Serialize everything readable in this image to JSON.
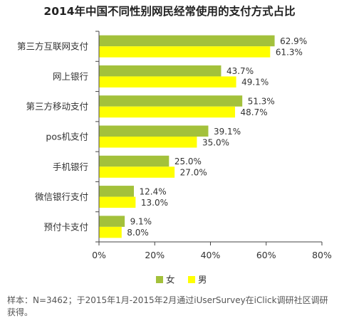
{
  "chart_data": {
    "type": "bar",
    "orientation": "horizontal",
    "title": "2014年中国不同性别网民经常使用的支付方式占比",
    "categories": [
      "第三方互联网支付",
      "网上银行",
      "第三方移动支付",
      "pos机支付",
      "手机银行",
      "微信银行支付",
      "预付卡支付"
    ],
    "series": [
      {
        "name": "女",
        "color": "#a3c13b",
        "values": [
          62.9,
          43.7,
          51.3,
          39.1,
          25.0,
          12.4,
          9.1
        ],
        "labels": [
          "62.9%",
          "43.7%",
          "51.3%",
          "39.1%",
          "25.0%",
          "12.4%",
          "9.1%"
        ]
      },
      {
        "name": "男",
        "color": "#ffff00",
        "values": [
          61.3,
          49.1,
          48.7,
          35.0,
          27.0,
          13.0,
          8.0
        ],
        "labels": [
          "61.3%",
          "49.1%",
          "48.7%",
          "35.0%",
          "27.0%",
          "13.0%",
          "8.0%"
        ]
      }
    ],
    "xlim": [
      0,
      80
    ],
    "xticks": [
      "0%",
      "20%",
      "40%",
      "60%",
      "80%"
    ],
    "grid": false,
    "legend_position": "bottom"
  },
  "footnote": "样本：N=3462；于2015年1月-2015年2月通过iUserSurvey在iClick调研社区调研获得。"
}
